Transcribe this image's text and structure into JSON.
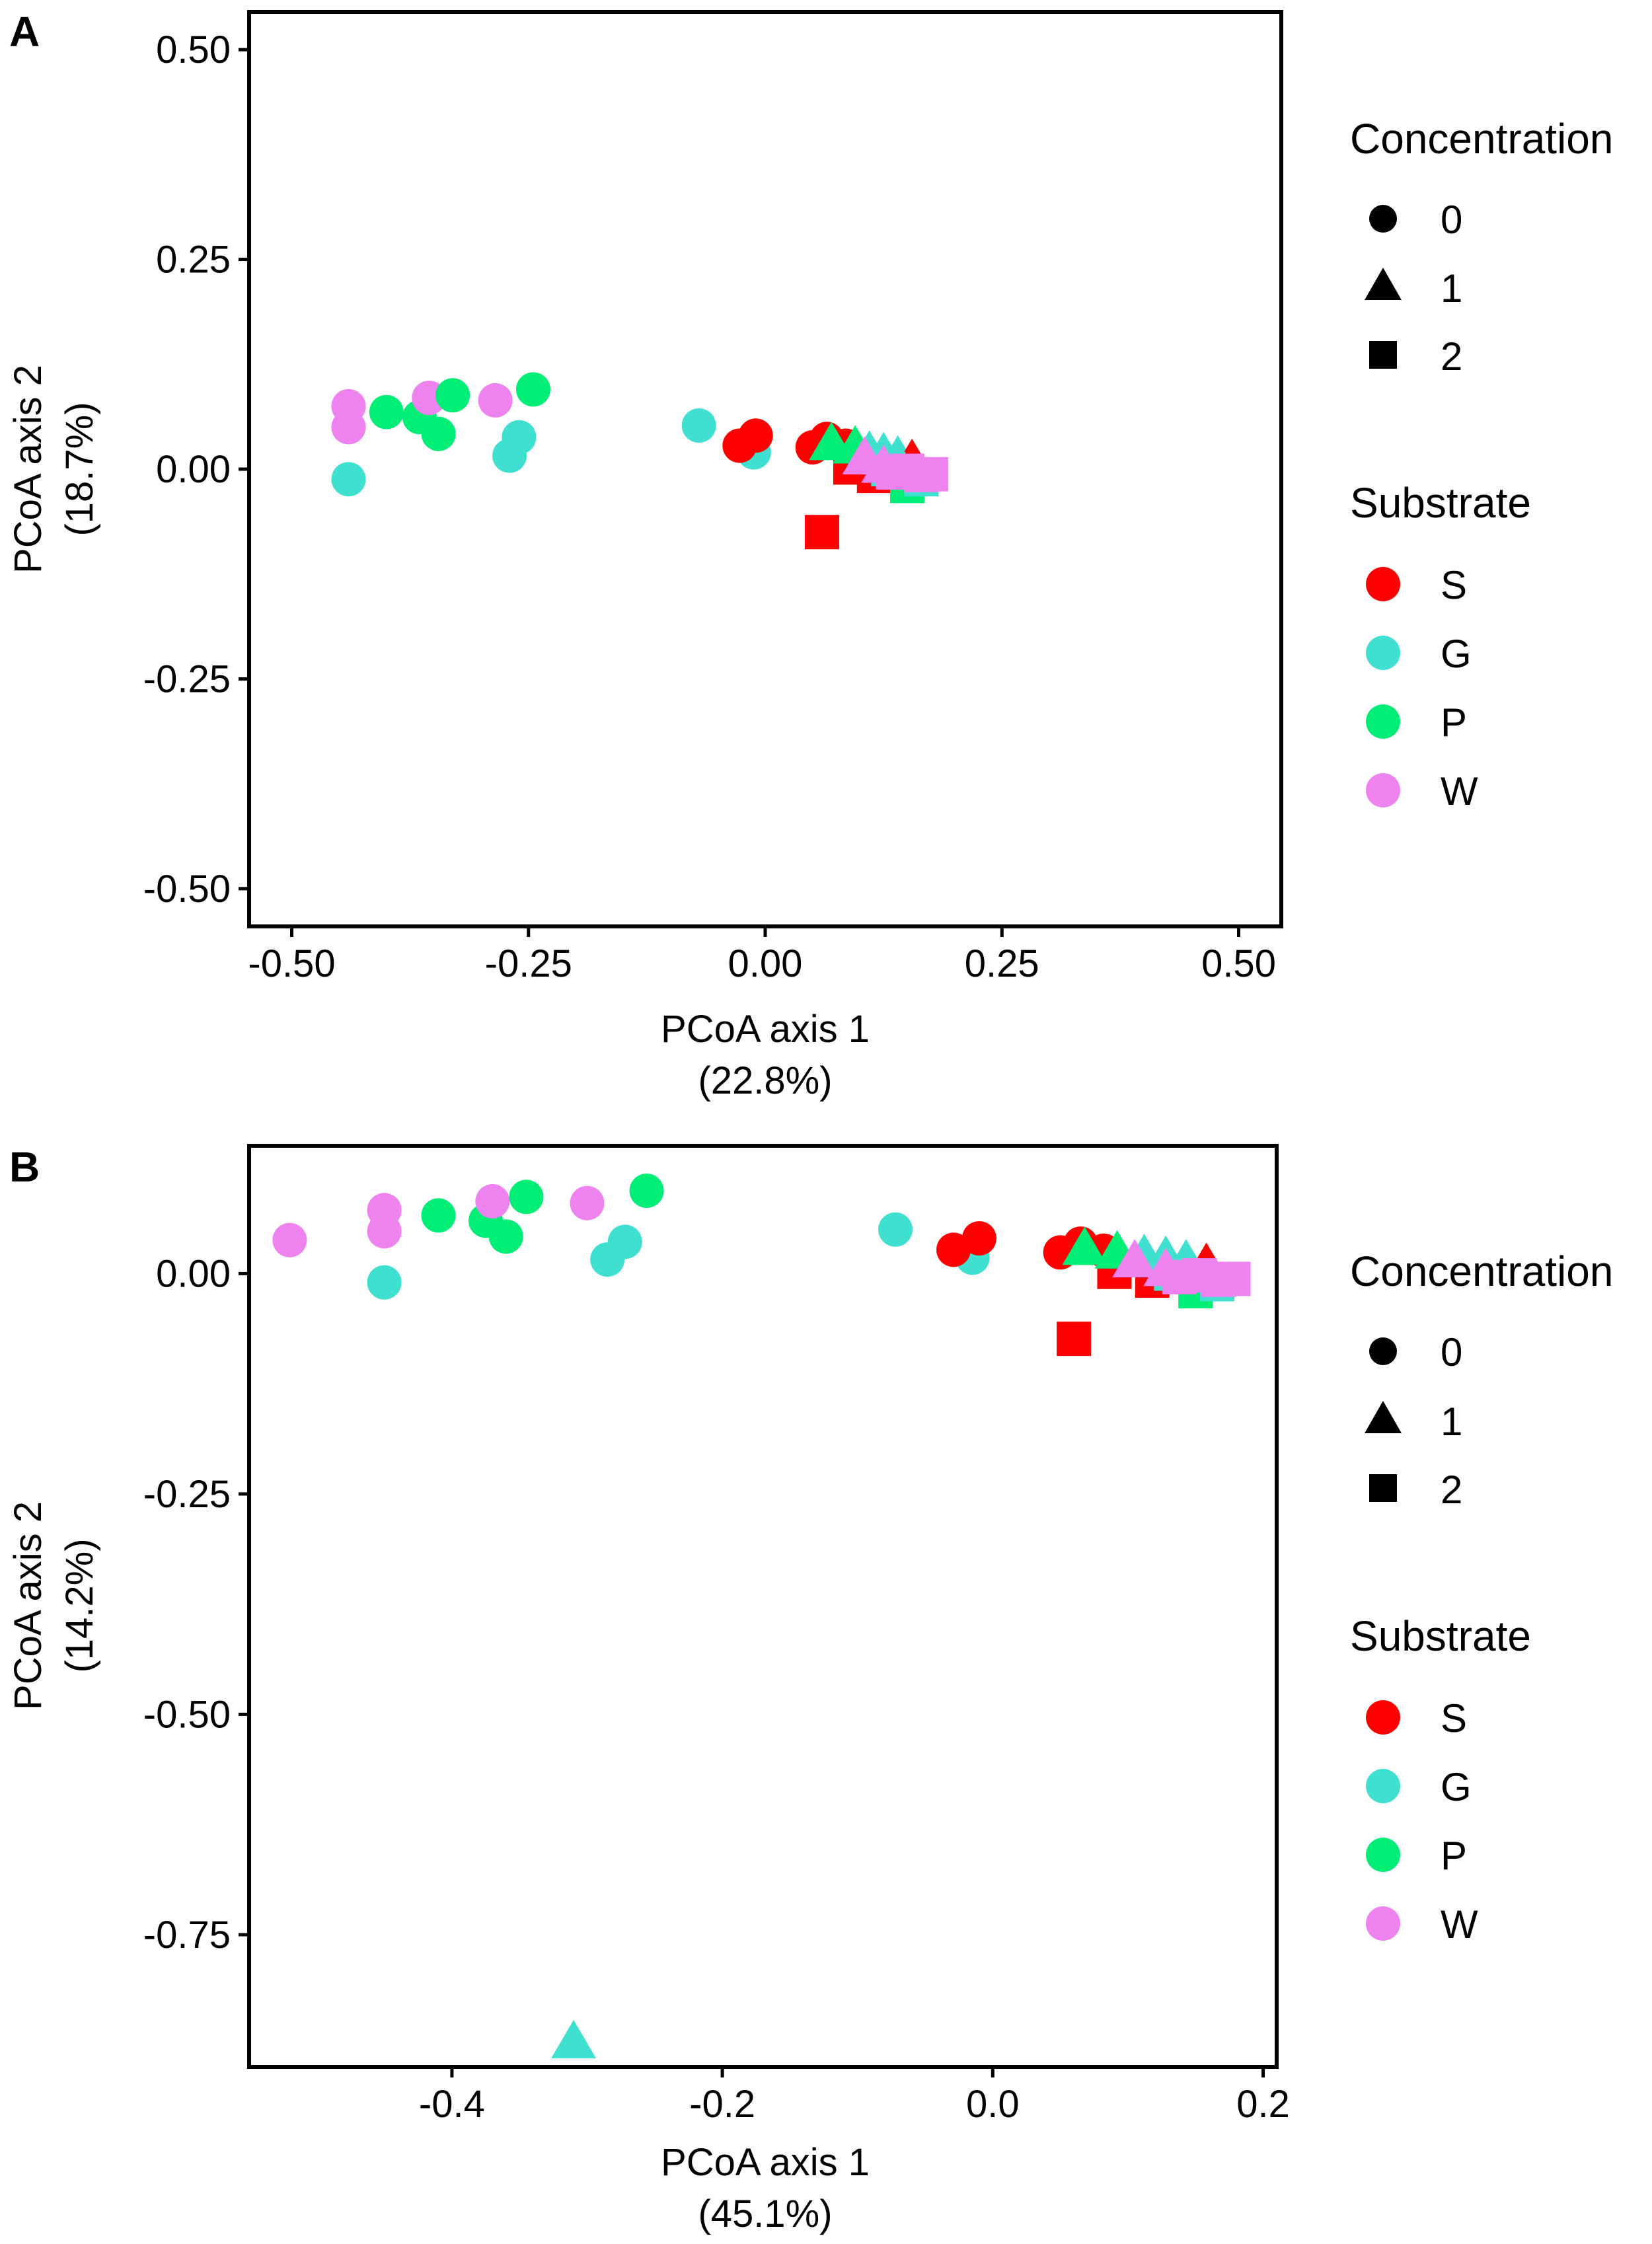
{
  "chart_data": [
    {
      "panel": "A",
      "type": "scatter",
      "xlabel": [
        "PCoA axis 1",
        "(22.8%)"
      ],
      "ylabel": [
        "PCoA axis 2",
        "(18.7%)"
      ],
      "xlim": [
        -0.545,
        0.545
      ],
      "ylim": [
        -0.545,
        0.545
      ],
      "xticks": [
        -0.5,
        -0.25,
        0,
        0.25,
        0.5
      ],
      "xtick_labels": [
        "-0.50",
        "-0.25",
        "0.00",
        "0.25",
        "0.50"
      ],
      "yticks": [
        0.5,
        0.25,
        0,
        -0.25,
        -0.5
      ],
      "ytick_labels": [
        "0.50",
        "0.25",
        "0.00",
        "-0.25",
        "-0.50"
      ],
      "points": [
        {
          "x": -0.44,
          "y": 0.075,
          "substrate": "W",
          "concentration": "0"
        },
        {
          "x": -0.44,
          "y": 0.05,
          "substrate": "W",
          "concentration": "0"
        },
        {
          "x": -0.44,
          "y": -0.012,
          "substrate": "G",
          "concentration": "0"
        },
        {
          "x": -0.4,
          "y": 0.068,
          "substrate": "P",
          "concentration": "0"
        },
        {
          "x": -0.365,
          "y": 0.062,
          "substrate": "P",
          "concentration": "0"
        },
        {
          "x": -0.355,
          "y": 0.085,
          "substrate": "W",
          "concentration": "0"
        },
        {
          "x": -0.345,
          "y": 0.042,
          "substrate": "P",
          "concentration": "0"
        },
        {
          "x": -0.33,
          "y": 0.088,
          "substrate": "P",
          "concentration": "0"
        },
        {
          "x": -0.285,
          "y": 0.082,
          "substrate": "W",
          "concentration": "0"
        },
        {
          "x": -0.27,
          "y": 0.016,
          "substrate": "G",
          "concentration": "0"
        },
        {
          "x": -0.26,
          "y": 0.038,
          "substrate": "G",
          "concentration": "0"
        },
        {
          "x": -0.245,
          "y": 0.095,
          "substrate": "P",
          "concentration": "0"
        },
        {
          "x": -0.07,
          "y": 0.052,
          "substrate": "G",
          "concentration": "0"
        },
        {
          "x": -0.012,
          "y": 0.02,
          "substrate": "G",
          "concentration": "0"
        },
        {
          "x": -0.027,
          "y": 0.028,
          "substrate": "S",
          "concentration": "0"
        },
        {
          "x": -0.01,
          "y": 0.04,
          "substrate": "S",
          "concentration": "0"
        },
        {
          "x": 0.05,
          "y": 0.026,
          "substrate": "S",
          "concentration": "0"
        },
        {
          "x": 0.065,
          "y": 0.036,
          "substrate": "S",
          "concentration": "0"
        },
        {
          "x": 0.085,
          "y": 0.028,
          "substrate": "S",
          "concentration": "0"
        },
        {
          "x": 0.06,
          "y": -0.075,
          "substrate": "S",
          "concentration": "2"
        },
        {
          "x": 0.09,
          "y": 0.002,
          "substrate": "S",
          "concentration": "2"
        },
        {
          "x": 0.115,
          "y": -0.008,
          "substrate": "S",
          "concentration": "2"
        },
        {
          "x": 0.07,
          "y": 0.032,
          "substrate": "P",
          "concentration": "1"
        },
        {
          "x": 0.095,
          "y": 0.028,
          "substrate": "P",
          "concentration": "1"
        },
        {
          "x": 0.11,
          "y": 0.022,
          "substrate": "G",
          "concentration": "1"
        },
        {
          "x": 0.125,
          "y": 0.02,
          "substrate": "G",
          "concentration": "1"
        },
        {
          "x": 0.14,
          "y": 0.016,
          "substrate": "G",
          "concentration": "1"
        },
        {
          "x": 0.155,
          "y": 0.012,
          "substrate": "S",
          "concentration": "1"
        },
        {
          "x": 0.15,
          "y": -0.02,
          "substrate": "P",
          "concentration": "2"
        },
        {
          "x": 0.165,
          "y": -0.012,
          "substrate": "G",
          "concentration": "2"
        },
        {
          "x": 0.13,
          "y": 0.0,
          "substrate": "G",
          "concentration": "2"
        },
        {
          "x": 0.105,
          "y": 0.015,
          "substrate": "W",
          "concentration": "1"
        },
        {
          "x": 0.125,
          "y": 0.005,
          "substrate": "W",
          "concentration": "1"
        },
        {
          "x": 0.135,
          "y": -0.004,
          "substrate": "W",
          "concentration": "2"
        },
        {
          "x": 0.15,
          "y": -0.002,
          "substrate": "W",
          "concentration": "2"
        },
        {
          "x": 0.165,
          "y": -0.007,
          "substrate": "W",
          "concentration": "2"
        },
        {
          "x": 0.175,
          "y": -0.006,
          "substrate": "W",
          "concentration": "2"
        }
      ]
    },
    {
      "panel": "B",
      "type": "scatter",
      "xlabel": [
        "PCoA axis 1",
        "(45.1%)"
      ],
      "ylabel": [
        "PCoA axis 2",
        "(14.2%)"
      ],
      "xlim": [
        -0.55,
        0.21
      ],
      "ylim": [
        -0.9,
        0.145
      ],
      "xticks": [
        -0.4,
        -0.2,
        0,
        0.2
      ],
      "xtick_labels": [
        "-0.4",
        "-0.2",
        "0.0",
        "0.2"
      ],
      "yticks": [
        0,
        -0.25,
        -0.5,
        -0.75
      ],
      "ytick_labels": [
        "0.00",
        "-0.25",
        "-0.50",
        "-0.75"
      ],
      "points": [
        {
          "x": -0.52,
          "y": 0.038,
          "substrate": "W",
          "concentration": "0"
        },
        {
          "x": -0.45,
          "y": 0.072,
          "substrate": "W",
          "concentration": "0"
        },
        {
          "x": -0.45,
          "y": 0.048,
          "substrate": "W",
          "concentration": "0"
        },
        {
          "x": -0.45,
          "y": -0.01,
          "substrate": "G",
          "concentration": "0"
        },
        {
          "x": -0.41,
          "y": 0.066,
          "substrate": "P",
          "concentration": "0"
        },
        {
          "x": -0.375,
          "y": 0.06,
          "substrate": "P",
          "concentration": "0"
        },
        {
          "x": -0.37,
          "y": 0.082,
          "substrate": "W",
          "concentration": "0"
        },
        {
          "x": -0.36,
          "y": 0.042,
          "substrate": "P",
          "concentration": "0"
        },
        {
          "x": -0.345,
          "y": 0.087,
          "substrate": "P",
          "concentration": "0"
        },
        {
          "x": -0.3,
          "y": 0.08,
          "substrate": "W",
          "concentration": "0"
        },
        {
          "x": -0.285,
          "y": 0.016,
          "substrate": "G",
          "concentration": "0"
        },
        {
          "x": -0.272,
          "y": 0.036,
          "substrate": "G",
          "concentration": "0"
        },
        {
          "x": -0.256,
          "y": 0.094,
          "substrate": "P",
          "concentration": "0"
        },
        {
          "x": -0.072,
          "y": 0.05,
          "substrate": "G",
          "concentration": "0"
        },
        {
          "x": -0.015,
          "y": 0.018,
          "substrate": "G",
          "concentration": "0"
        },
        {
          "x": -0.029,
          "y": 0.027,
          "substrate": "S",
          "concentration": "0"
        },
        {
          "x": -0.01,
          "y": 0.04,
          "substrate": "S",
          "concentration": "0"
        },
        {
          "x": 0.05,
          "y": 0.024,
          "substrate": "S",
          "concentration": "0"
        },
        {
          "x": 0.065,
          "y": 0.034,
          "substrate": "S",
          "concentration": "0"
        },
        {
          "x": 0.082,
          "y": 0.026,
          "substrate": "S",
          "concentration": "0"
        },
        {
          "x": 0.06,
          "y": -0.074,
          "substrate": "S",
          "concentration": "2"
        },
        {
          "x": 0.09,
          "y": 0.002,
          "substrate": "S",
          "concentration": "2"
        },
        {
          "x": 0.118,
          "y": -0.008,
          "substrate": "S",
          "concentration": "2"
        },
        {
          "x": 0.068,
          "y": 0.03,
          "substrate": "P",
          "concentration": "1"
        },
        {
          "x": 0.092,
          "y": 0.026,
          "substrate": "P",
          "concentration": "1"
        },
        {
          "x": 0.112,
          "y": 0.022,
          "substrate": "G",
          "concentration": "1"
        },
        {
          "x": 0.128,
          "y": 0.02,
          "substrate": "G",
          "concentration": "1"
        },
        {
          "x": 0.143,
          "y": 0.016,
          "substrate": "G",
          "concentration": "1"
        },
        {
          "x": 0.158,
          "y": 0.012,
          "substrate": "S",
          "concentration": "1"
        },
        {
          "x": 0.15,
          "y": -0.02,
          "substrate": "P",
          "concentration": "2"
        },
        {
          "x": 0.166,
          "y": -0.012,
          "substrate": "G",
          "concentration": "2"
        },
        {
          "x": 0.132,
          "y": 0.0,
          "substrate": "G",
          "concentration": "2"
        },
        {
          "x": 0.105,
          "y": 0.016,
          "substrate": "W",
          "concentration": "1"
        },
        {
          "x": 0.128,
          "y": 0.006,
          "substrate": "W",
          "concentration": "1"
        },
        {
          "x": 0.138,
          "y": -0.004,
          "substrate": "W",
          "concentration": "2"
        },
        {
          "x": 0.153,
          "y": -0.002,
          "substrate": "W",
          "concentration": "2"
        },
        {
          "x": 0.167,
          "y": -0.007,
          "substrate": "W",
          "concentration": "2"
        },
        {
          "x": 0.178,
          "y": -0.006,
          "substrate": "W",
          "concentration": "2"
        },
        {
          "x": -0.31,
          "y": -0.87,
          "substrate": "G",
          "concentration": "1"
        }
      ]
    }
  ],
  "legend": {
    "concentration_title": "Concentration",
    "concentration": [
      {
        "label": "0",
        "shape": "circle"
      },
      {
        "label": "1",
        "shape": "triangle"
      },
      {
        "label": "2",
        "shape": "square"
      }
    ],
    "substrate_title": "Substrate",
    "substrate": [
      {
        "label": "S",
        "color": "#FF0000"
      },
      {
        "label": "G",
        "color": "#40E0D0"
      },
      {
        "label": "P",
        "color": "#00EE76"
      },
      {
        "label": "W",
        "color": "#EE82EE"
      }
    ]
  }
}
